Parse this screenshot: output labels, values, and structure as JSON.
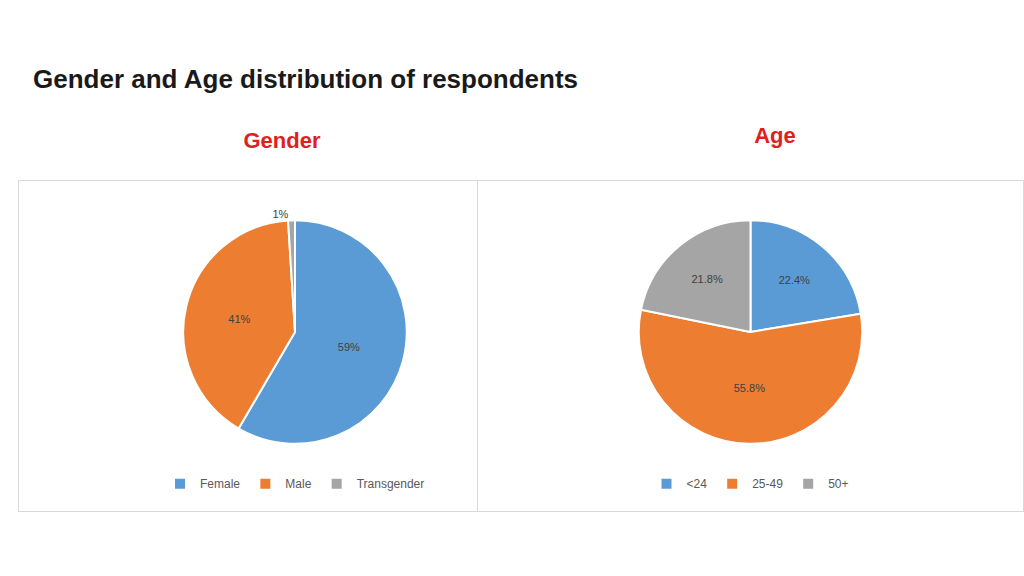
{
  "heading": "Gender and Age distribution of respondents",
  "chart_data": [
    {
      "type": "pie",
      "title": "Gender",
      "categories": [
        "Female",
        "Male",
        "Transgender"
      ],
      "values": [
        59,
        41,
        1
      ],
      "value_labels": [
        "59%",
        "41%",
        "1%"
      ],
      "colors": [
        "#5b9bd5",
        "#ed7d31",
        "#a5a5a5"
      ],
      "data_labels": true,
      "legend": "bottom"
    },
    {
      "type": "pie",
      "title": "Age",
      "categories": [
        "<24",
        "25-49",
        "50+"
      ],
      "values": [
        22.4,
        55.8,
        21.8
      ],
      "value_labels": [
        "22.4%",
        "55.8%",
        "21.8%"
      ],
      "colors": [
        "#5b9bd5",
        "#ed7d31",
        "#a5a5a5"
      ],
      "data_labels": true,
      "legend": "bottom"
    }
  ]
}
